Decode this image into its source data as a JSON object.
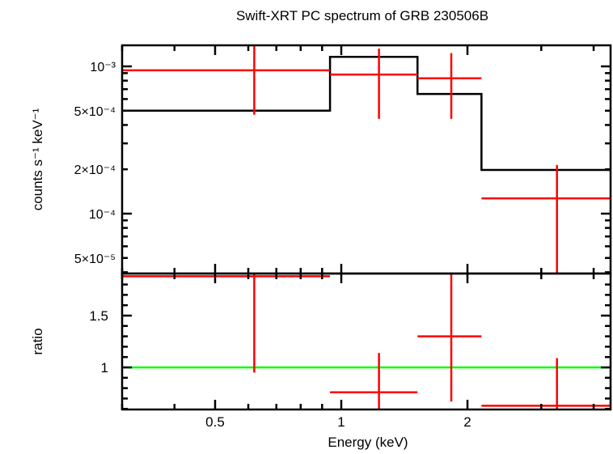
{
  "chart_data": [
    {
      "type": "line",
      "title": "Swift-XRT PC spectrum of GRB 230506B",
      "xlabel": "Energy (keV)",
      "ylabel": "counts s⁻¹ keV⁻¹",
      "xscale": "log",
      "yscale": "log",
      "xlim": [
        0.3,
        4.39
      ],
      "ylim": [
        3.92e-05,
        0.00139
      ],
      "yticks": [
        {
          "v": 0.001,
          "label": "10⁻³"
        },
        {
          "v": 0.0005,
          "label": "5×10⁻⁴"
        },
        {
          "v": 0.0002,
          "label": "2×10⁻⁴"
        },
        {
          "v": 0.0001,
          "label": "10⁻⁴"
        },
        {
          "v": 5e-05,
          "label": "5×10⁻⁵"
        }
      ],
      "series": [
        {
          "kind": "data",
          "color": "#ff0000",
          "points": [
            {
              "xlo": 0.3,
              "xhi": 0.94,
              "x": 0.62,
              "y": 0.00094,
              "ylo": 0.00047,
              "yhi": 0.0014
            },
            {
              "xlo": 0.94,
              "xhi": 1.52,
              "x": 1.23,
              "y": 0.00088,
              "ylo": 0.00044,
              "yhi": 0.00132
            },
            {
              "xlo": 1.52,
              "xhi": 2.16,
              "x": 1.83,
              "y": 0.00083,
              "ylo": 0.00044,
              "yhi": 0.00123
            },
            {
              "xlo": 2.16,
              "xhi": 4.39,
              "x": 3.27,
              "y": 0.000127,
              "ylo": 3.9e-05,
              "yhi": 0.000214
            }
          ]
        },
        {
          "kind": "model",
          "color": "#000000",
          "steps": [
            {
              "xlo": 0.3,
              "xhi": 0.94,
              "y": 0.0005
            },
            {
              "xlo": 0.94,
              "xhi": 1.52,
              "y": 0.00116
            },
            {
              "xlo": 1.52,
              "xhi": 2.16,
              "y": 0.00065
            },
            {
              "xlo": 2.16,
              "xhi": 4.39,
              "y": 0.000198
            }
          ]
        }
      ]
    },
    {
      "type": "line",
      "xlabel": "Energy (keV)",
      "ylabel": "ratio",
      "xscale": "log",
      "yscale": "linear",
      "xlim": [
        0.3,
        4.39
      ],
      "ylim": [
        0.594,
        1.906
      ],
      "xticks": [
        {
          "v": 0.5,
          "label": "0.5"
        },
        {
          "v": 1,
          "label": "1"
        },
        {
          "v": 2,
          "label": "2"
        }
      ],
      "yticks": [
        {
          "v": 1.5,
          "label": "1.5"
        },
        {
          "v": 1,
          "label": "1"
        }
      ],
      "reference_line": {
        "y": 1,
        "color": "#00ff00"
      },
      "series": [
        {
          "kind": "ratio",
          "color": "#ff0000",
          "points": [
            {
              "xlo": 0.3,
              "xhi": 0.94,
              "x": 0.62,
              "y": 1.88,
              "ylo": 0.95,
              "yhi": 1.95
            },
            {
              "xlo": 0.94,
              "xhi": 1.52,
              "x": 1.23,
              "y": 0.76,
              "ylo": 0.55,
              "yhi": 1.14
            },
            {
              "xlo": 1.52,
              "xhi": 2.16,
              "x": 1.83,
              "y": 1.3,
              "ylo": 0.67,
              "yhi": 1.95
            },
            {
              "xlo": 2.16,
              "xhi": 4.39,
              "x": 3.27,
              "y": 0.63,
              "ylo": 0.55,
              "yhi": 1.09
            }
          ]
        }
      ]
    }
  ]
}
